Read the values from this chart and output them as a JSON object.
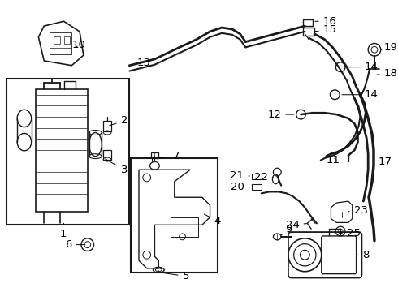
{
  "bg_color": "#ffffff",
  "line_color": "#1a1a1a",
  "fig_width": 4.9,
  "fig_height": 3.6,
  "dpi": 100,
  "label_fontsize": 9.5
}
